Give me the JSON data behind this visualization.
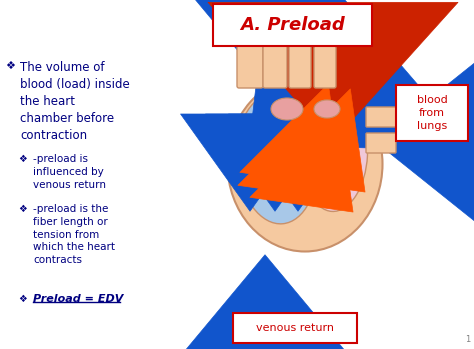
{
  "title": "A. Preload",
  "title_color": "#CC0000",
  "title_box_color": "#CC0000",
  "bg_color": "#FFFFFF",
  "bullet1": "The volume of\nblood (load) inside\nthe heart\nchamber before\ncontraction",
  "bullet1_color": "#000080",
  "sub_bullet1": "-preload is\ninfluenced by\nvenous return",
  "sub_bullet2": "-preload is the\nfiber length or\ntension from\nwhich the heart\ncontracts",
  "sub_bullet3": "Preload = EDV",
  "sub_color": "#000080",
  "label_venous": "venous return",
  "label_blood": "blood\nfrom\nlungs",
  "label_color": "#CC0000",
  "label_box_color": "#CC0000",
  "heart_skin": "#F5C9A0",
  "heart_outline": "#C8906A",
  "heart_fill_left": "#A8C8E8",
  "heart_fill_right": "#F0C8D8",
  "heart_pink_node": "#E8A0A0",
  "arrow_blue": "#1155CC",
  "arrow_red": "#CC2200",
  "arrow_orange": "#FF5500"
}
